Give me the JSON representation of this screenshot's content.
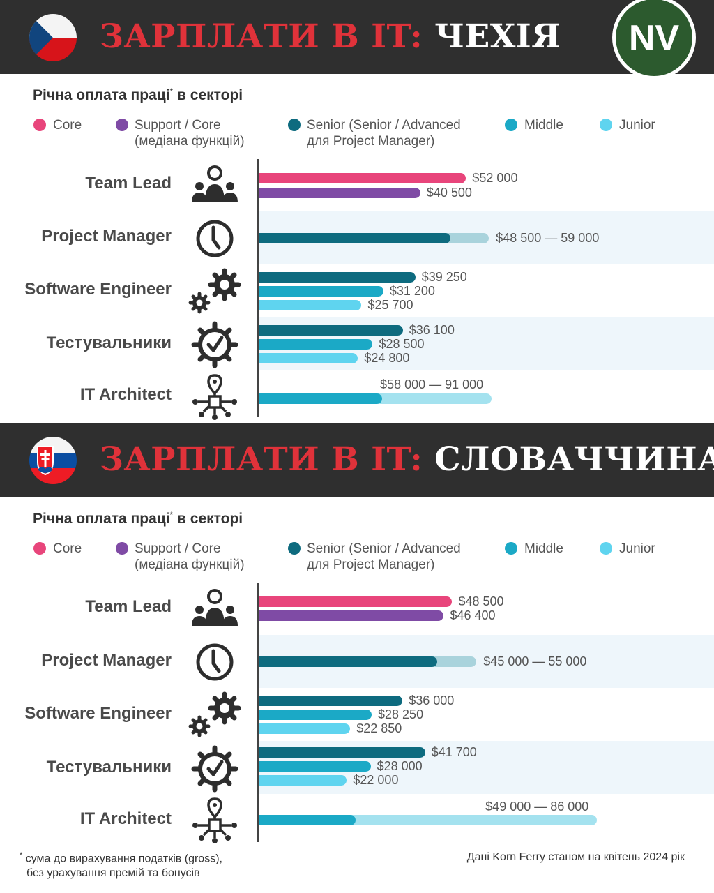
{
  "colors": {
    "core": "#e8457b",
    "support": "#7f4ba5",
    "senior": "#0e6b7f",
    "middle": "#1ba9c6",
    "junior": "#5fd4ef",
    "senior_range_light": "#a9d3dc",
    "middle_range_light": "#a4e2ef"
  },
  "brand": {
    "logo_text": "NV"
  },
  "legend": {
    "core": "Core",
    "support_line1": "Support / Core",
    "support_line2": "(медіана функцій)",
    "senior_line1": "Senior (Senior / Advanced",
    "senior_line2": "для Project Manager)",
    "middle": "Middle",
    "junior": "Junior"
  },
  "footnote": {
    "star": "*",
    "line1": "сума до вирахування податків (gross),",
    "line2": "без урахування премій та бонусів"
  },
  "source": "Дані Korn Ferry станом на квітень 2024 рік",
  "chart_data": [
    {
      "type": "bar",
      "title_red": "ЗАРПЛАТИ В IT:",
      "title_white": "ЧЕХІЯ",
      "subtitle": "Річна оплата праці",
      "subtitle_star": "*",
      "subtitle_tail": "в секторі",
      "categories": [
        "Team Lead",
        "Project Manager",
        "Software Engineer",
        "Тестувальники",
        "IT Architect"
      ],
      "rows": [
        {
          "category": "Team Lead",
          "bars": [
            {
              "series": "Core",
              "value": 52000,
              "label": "$52 000"
            },
            {
              "series": "Support / Core",
              "value": 40500,
              "label": "$40 500"
            }
          ]
        },
        {
          "category": "Project Manager",
          "bars": [
            {
              "series": "Senior",
              "range": [
                48500,
                59000
              ],
              "label": "$48 500 — 59 000"
            }
          ]
        },
        {
          "category": "Software Engineer",
          "bars": [
            {
              "series": "Senior",
              "value": 39250,
              "label": "$39 250"
            },
            {
              "series": "Middle",
              "value": 31200,
              "label": "$31 200"
            },
            {
              "series": "Junior",
              "value": 25700,
              "label": "$25 700"
            }
          ]
        },
        {
          "category": "Тестувальники",
          "bars": [
            {
              "series": "Senior",
              "value": 36100,
              "label": "$36 100"
            },
            {
              "series": "Middle",
              "value": 28500,
              "label": "$28 500"
            },
            {
              "series": "Junior",
              "value": 24800,
              "label": "$24 800"
            }
          ]
        },
        {
          "category": "IT Architect",
          "bars": [
            {
              "series": "Middle",
              "range": [
                58000,
                91000
              ],
              "label": "$58 000 — 91 000"
            }
          ]
        }
      ]
    },
    {
      "type": "bar",
      "title_red": "ЗАРПЛАТИ В IT:",
      "title_white": "СЛОВАЧЧИНА",
      "subtitle": "Річна оплата праці",
      "subtitle_star": "*",
      "subtitle_tail": "в секторі",
      "categories": [
        "Team Lead",
        "Project Manager",
        "Software Engineer",
        "Тестувальники",
        "IT Architect"
      ],
      "rows": [
        {
          "category": "Team Lead",
          "bars": [
            {
              "series": "Core",
              "value": 48500,
              "label": "$48 500"
            },
            {
              "series": "Support / Core",
              "value": 46400,
              "label": "$46 400"
            }
          ]
        },
        {
          "category": "Project Manager",
          "bars": [
            {
              "series": "Senior",
              "range": [
                45000,
                55000
              ],
              "label": "$45 000 — 55 000"
            }
          ]
        },
        {
          "category": "Software Engineer",
          "bars": [
            {
              "series": "Senior",
              "value": 36000,
              "label": "$36 000"
            },
            {
              "series": "Middle",
              "value": 28250,
              "label": "$28 250"
            },
            {
              "series": "Junior",
              "value": 22850,
              "label": "$22 850"
            }
          ]
        },
        {
          "category": "Тестувальники",
          "bars": [
            {
              "series": "Senior",
              "value": 41700,
              "label": "$41 700"
            },
            {
              "series": "Middle",
              "value": 28000,
              "label": "$28 000"
            },
            {
              "series": "Junior",
              "value": 22000,
              "label": "$22 000"
            }
          ]
        },
        {
          "category": "IT Architect",
          "bars": [
            {
              "series": "Middle",
              "range": [
                49000,
                86000
              ],
              "label": "$49 000 — 86 000"
            }
          ]
        }
      ]
    }
  ]
}
